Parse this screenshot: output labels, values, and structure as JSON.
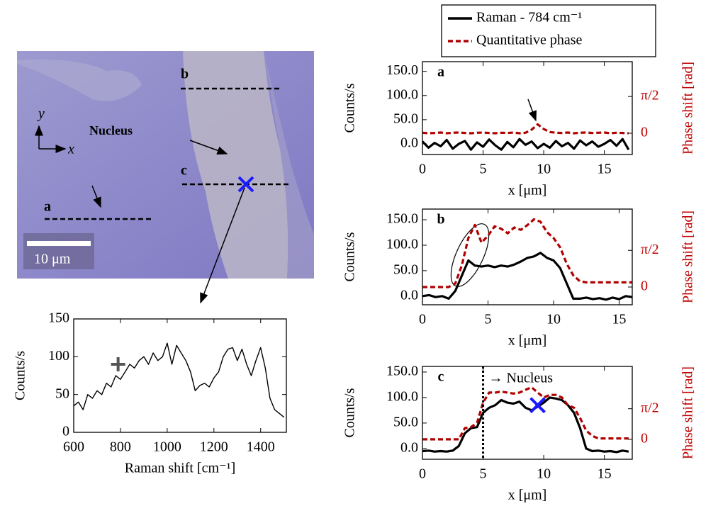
{
  "image": {
    "label_a": "a",
    "label_b": "b",
    "label_c": "c",
    "nucleus": "Nucleus",
    "scale_bar": "10 μm",
    "axis_y": "y",
    "axis_x": "x"
  },
  "chart_data": [
    {
      "type": "line",
      "xlabel": "Raman shift [cm⁻¹]",
      "ylabel": "Counts/s",
      "xlim": [
        600,
        1510
      ],
      "xticks": [
        600,
        800,
        1000,
        1200,
        1400
      ],
      "ylim": [
        0,
        150
      ],
      "yticks": [
        0,
        50,
        100,
        150
      ],
      "x": [
        600,
        620,
        640,
        660,
        680,
        700,
        720,
        740,
        760,
        780,
        800,
        820,
        840,
        860,
        880,
        900,
        920,
        940,
        960,
        980,
        1000,
        1020,
        1040,
        1060,
        1080,
        1100,
        1120,
        1140,
        1160,
        1180,
        1200,
        1220,
        1240,
        1260,
        1280,
        1300,
        1320,
        1340,
        1360,
        1380,
        1400,
        1420,
        1440,
        1460,
        1480,
        1500
      ],
      "series": [
        {
          "color": "#000000",
          "values": [
            35,
            40,
            30,
            50,
            45,
            55,
            50,
            65,
            60,
            75,
            70,
            80,
            90,
            85,
            95,
            100,
            90,
            105,
            95,
            100,
            118,
            90,
            115,
            105,
            95,
            80,
            55,
            62,
            65,
            60,
            72,
            80,
            100,
            110,
            112,
            95,
            110,
            90,
            75,
            95,
            112,
            85,
            45,
            30,
            25,
            20
          ]
        }
      ],
      "marker": {
        "x": 790,
        "y": 90,
        "color": "#555555"
      }
    },
    {
      "type": "line",
      "panel": "a",
      "xlabel": "x [μm]",
      "ylabel": "Counts/s",
      "y2label": "Phase shift [rad]",
      "xlim": [
        0,
        17.3
      ],
      "xticks": [
        0,
        5,
        10,
        15
      ],
      "ylim": [
        -22,
        170
      ],
      "yticks": [
        {
          "value": 0,
          "label": "0.0"
        },
        {
          "value": 50,
          "label": "50.0"
        },
        {
          "value": 100,
          "label": "100.0"
        },
        {
          "value": 150,
          "label": "150.0"
        }
      ],
      "y2lim": [
        -0.91,
        3.06
      ],
      "y2ticks": [
        0,
        {
          "value": 1.5708,
          "label": "π/2"
        }
      ],
      "x": [
        0,
        0.5,
        1,
        1.5,
        2,
        2.5,
        3,
        3.5,
        4,
        4.5,
        5,
        5.5,
        6,
        6.5,
        7,
        7.5,
        8,
        8.5,
        9,
        9.5,
        10,
        10.5,
        11,
        11.5,
        12,
        12.5,
        13,
        13.5,
        14,
        14.5,
        15,
        15.5,
        16,
        16.5,
        17
      ],
      "series": [
        {
          "name": "Raman - 784 cm⁻¹",
          "color": "#000000",
          "values": [
            5,
            -8,
            2,
            -5,
            8,
            -10,
            0,
            6,
            -12,
            3,
            -6,
            9,
            -3,
            -12,
            4,
            -7,
            10,
            -2,
            5,
            -9,
            0,
            -8,
            6,
            -5,
            2,
            -10,
            7,
            -3,
            5,
            -6,
            0,
            8,
            -4,
            10,
            -12
          ]
        },
        {
          "name": "Quantitative phase",
          "color": "#b00000",
          "axis": "y2",
          "values": [
            0.02,
            0.0,
            0.01,
            0.03,
            0.0,
            0.02,
            0.03,
            0.01,
            0.0,
            0.02,
            0.03,
            0.01,
            0.0,
            0.02,
            0.01,
            0.03,
            0.0,
            0.02,
            0.15,
            0.38,
            0.18,
            0.05,
            0.02,
            0.01,
            0.03,
            0.0,
            0.02,
            0.03,
            0.01,
            0.02,
            0.03,
            0.0,
            0.02,
            0.01,
            0.0
          ]
        }
      ]
    },
    {
      "type": "line",
      "panel": "b",
      "xlabel": "x [μm]",
      "ylabel": "Counts/s",
      "y2label": "Phase shift [rad]",
      "xlim": [
        0,
        16
      ],
      "xticks": [
        0,
        5,
        10,
        15
      ],
      "ylim": [
        -17,
        171
      ],
      "yticks": [
        {
          "value": 0,
          "label": "0.0"
        },
        {
          "value": 50,
          "label": "50.0"
        },
        {
          "value": 100,
          "label": "100.0"
        },
        {
          "value": 150,
          "label": "150.0"
        }
      ],
      "y2lim": [
        -0.76,
        3.34
      ],
      "y2ticks": [
        0,
        {
          "value": 1.5708,
          "label": "π/2"
        }
      ],
      "x": [
        0,
        0.5,
        1,
        1.5,
        2,
        2.5,
        3,
        3.5,
        4,
        4.5,
        5,
        5.5,
        6,
        6.5,
        7,
        7.5,
        8,
        8.5,
        9,
        9.5,
        10,
        10.5,
        11,
        11.5,
        12,
        12.5,
        13,
        13.5,
        14,
        14.5,
        15,
        15.5,
        16
      ],
      "series": [
        {
          "color": "#000000",
          "values": [
            0,
            2,
            -2,
            0,
            -5,
            10,
            40,
            70,
            60,
            58,
            60,
            57,
            60,
            58,
            62,
            68,
            75,
            78,
            85,
            75,
            70,
            55,
            25,
            -5,
            -5,
            -3,
            -6,
            -4,
            -7,
            -3,
            -6,
            0,
            -2
          ]
        },
        {
          "color": "#b00000",
          "axis": "y2",
          "values": [
            0,
            0,
            0,
            0,
            0,
            0.15,
            0.92,
            2.1,
            2.66,
            1.9,
            2.2,
            2.6,
            2.5,
            2.3,
            2.55,
            2.45,
            2.65,
            2.9,
            2.8,
            2.35,
            2.1,
            1.7,
            1.0,
            0.5,
            0.25,
            0.2,
            0.2,
            0.2,
            0.2,
            0.2,
            0.2,
            0.2,
            0.2
          ]
        }
      ]
    },
    {
      "type": "line",
      "panel": "c",
      "xlabel": "x [μm]",
      "ylabel": "Counts/s",
      "y2label": "Phase shift [rad]",
      "xlim": [
        0,
        17.3
      ],
      "xticks": [
        0,
        5,
        10,
        15
      ],
      "ylim": [
        -21,
        161
      ],
      "yticks": [
        {
          "value": 0,
          "label": "0.0"
        },
        {
          "value": 50,
          "label": "50.0"
        },
        {
          "value": 100,
          "label": "100.0"
        },
        {
          "value": 150,
          "label": "150.0"
        }
      ],
      "y2lim": [
        -1.02,
        3.74
      ],
      "y2ticks": [
        0,
        {
          "value": 1.5708,
          "label": "π/2"
        }
      ],
      "x": [
        0,
        0.5,
        1,
        1.5,
        2,
        2.5,
        3,
        3.5,
        4,
        4.5,
        5,
        5.5,
        6,
        6.5,
        7,
        7.5,
        8,
        8.5,
        9,
        9.5,
        10,
        10.5,
        11,
        11.5,
        12,
        12.5,
        13,
        13.5,
        14,
        14.5,
        15,
        15.5,
        16,
        16.5,
        17
      ],
      "series": [
        {
          "color": "#000000",
          "values": [
            -5,
            -4,
            -6,
            -5,
            -6,
            -4,
            5,
            30,
            40,
            42,
            70,
            80,
            85,
            95,
            90,
            88,
            92,
            80,
            75,
            82,
            90,
            100,
            98,
            95,
            85,
            70,
            40,
            0,
            -5,
            -4,
            -6,
            -5,
            -7,
            -4,
            -6
          ]
        },
        {
          "color": "#b00000",
          "axis": "y2",
          "values": [
            0,
            0,
            0,
            0,
            0,
            0,
            0,
            0.58,
            0.63,
            0.84,
            1.88,
            2.4,
            2.4,
            2.45,
            2.4,
            2.35,
            2.4,
            2.54,
            2.67,
            2.4,
            2.15,
            2.28,
            2.28,
            2.15,
            1.75,
            1.62,
            1.1,
            0.45,
            0.18,
            0.05,
            0.05,
            0.05,
            0.05,
            0.05,
            0.05
          ]
        }
      ],
      "annotation": "→ Nucleus",
      "annotation_x": 5,
      "marker": {
        "x": 9.5,
        "y": 85,
        "color": "#1a1aff"
      }
    }
  ]
}
